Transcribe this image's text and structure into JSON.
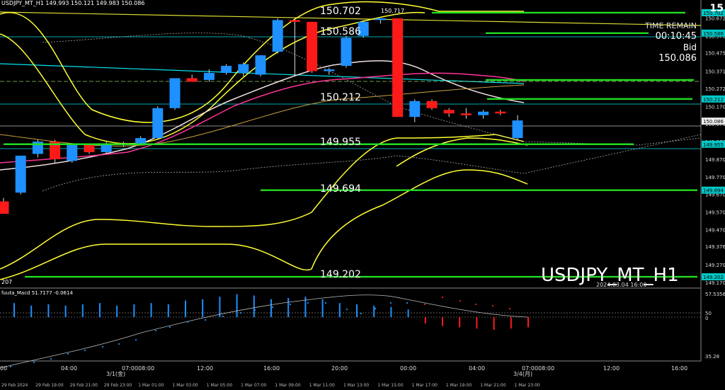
{
  "header": {
    "text": "USDJPY_MT_H1   149.993 150.121 149.983 150.086"
  },
  "corner_label": "15",
  "price_labels": {
    "high": "150.702",
    "high_small": "150.717",
    "l1": "150.586",
    "l2": "150.212",
    "l3": "149.955",
    "l4": "149.694",
    "l5": "149.202",
    "left_small": "207"
  },
  "info": {
    "time_remain_label": "TIME REMAIN",
    "time_remain": "00:10:45",
    "bid_label": "Bid",
    "bid": "150.086"
  },
  "symbol": "USDJPY_MT_H1",
  "timestamp": "2024.03.04 16:00",
  "indicator": {
    "label": "fuuta_Macd 51.7177   -0.0614",
    "axis": [
      "57.5356",
      "50",
      "0",
      "35.28"
    ]
  },
  "colors": {
    "bg": "#000000",
    "bull": "#1e90ff",
    "bear": "#ff1a1a",
    "support": "#22dd22",
    "band": "#ffff33",
    "ma_pink": "#ff3399",
    "ma_white": "#f0e0e0",
    "axis": "#00e5ee"
  },
  "chart_data": {
    "type": "candlestick",
    "price_range": [
      149.15,
      150.75
    ],
    "y_ticks": [
      "150.672",
      "150.570",
      "150.475",
      "150.371",
      "150.272",
      "150.170",
      "150.070",
      "149.970",
      "149.870",
      "149.770",
      "149.670",
      "149.570",
      "149.470",
      "149.376",
      "149.270",
      "149.170"
    ],
    "axis_marks": [
      {
        "label": "150.702",
        "price": 150.702
      },
      {
        "label": "150.586",
        "price": 150.586
      },
      {
        "label": "150.212",
        "price": 150.212
      },
      {
        "label": "150.086",
        "price": 150.086
      },
      {
        "label": "149.955",
        "price": 149.955
      },
      {
        "label": "149.694",
        "price": 149.694
      },
      {
        "label": "149.202",
        "price": 149.202
      }
    ],
    "x_top_ticks": [
      "00",
      "04:00",
      "3/1(金)",
      "07:0008:00",
      "12:00",
      "16:00",
      "20:00",
      "00:00",
      "04:00",
      "07:0008:00",
      "3/4(月)",
      "12:00",
      "16:00"
    ],
    "x_bottom_ticks": [
      "29 Feb 2024",
      "29 Feb 19:00",
      "29 Feb 21:00",
      "29 Feb 23:00",
      "1 Mar 01:00",
      "1 Mar 03:00",
      "1 Mar 05:00",
      "1 Mar 07:00",
      "1 Mar 09:00",
      "1 Mar 11:00",
      "1 Mar 13:00",
      "1 Mar 15:00",
      "1 Mar 17:00",
      "1 Mar 19:00",
      "1 Mar 21:00",
      "1 Mar 23:00"
    ],
    "candles": [
      {
        "o": 149.63,
        "h": 149.65,
        "l": 149.56,
        "c": 149.56
      },
      {
        "o": 149.68,
        "h": 149.89,
        "l": 149.67,
        "c": 149.89
      },
      {
        "o": 149.9,
        "h": 149.98,
        "l": 149.88,
        "c": 149.97
      },
      {
        "o": 149.97,
        "h": 149.98,
        "l": 149.85,
        "c": 149.87
      },
      {
        "o": 149.86,
        "h": 149.96,
        "l": 149.85,
        "c": 149.95
      },
      {
        "o": 149.95,
        "h": 149.96,
        "l": 149.9,
        "c": 149.91
      },
      {
        "o": 149.91,
        "h": 149.97,
        "l": 149.9,
        "c": 149.96
      },
      {
        "o": 149.96,
        "h": 149.97,
        "l": 149.94,
        "c": 149.95
      },
      {
        "o": 149.96,
        "h": 150.0,
        "l": 149.95,
        "c": 149.99
      },
      {
        "o": 149.99,
        "h": 150.17,
        "l": 149.98,
        "c": 150.16
      },
      {
        "o": 150.16,
        "h": 150.33,
        "l": 150.15,
        "c": 150.33
      },
      {
        "o": 150.33,
        "h": 150.35,
        "l": 150.31,
        "c": 150.31
      },
      {
        "o": 150.32,
        "h": 150.38,
        "l": 150.31,
        "c": 150.36
      },
      {
        "o": 150.36,
        "h": 150.41,
        "l": 150.35,
        "c": 150.4
      },
      {
        "o": 150.36,
        "h": 150.42,
        "l": 150.34,
        "c": 150.41
      },
      {
        "o": 150.35,
        "h": 150.46,
        "l": 150.34,
        "c": 150.46
      },
      {
        "o": 150.48,
        "h": 150.67,
        "l": 150.47,
        "c": 150.66
      },
      {
        "o": 150.66,
        "h": 150.67,
        "l": 150.34,
        "c": 150.65
      },
      {
        "o": 150.65,
        "h": 150.65,
        "l": 150.36,
        "c": 150.37
      },
      {
        "o": 150.37,
        "h": 150.39,
        "l": 150.35,
        "c": 150.38
      },
      {
        "o": 150.4,
        "h": 150.57,
        "l": 150.39,
        "c": 150.56
      },
      {
        "o": 150.57,
        "h": 150.66,
        "l": 150.56,
        "c": 150.65
      },
      {
        "o": 150.66,
        "h": 150.67,
        "l": 150.64,
        "c": 150.67
      },
      {
        "o": 150.67,
        "h": 150.67,
        "l": 150.11,
        "c": 150.11
      },
      {
        "o": 150.11,
        "h": 150.21,
        "l": 150.08,
        "c": 150.2
      },
      {
        "o": 150.2,
        "h": 150.21,
        "l": 150.15,
        "c": 150.16
      },
      {
        "o": 150.15,
        "h": 150.16,
        "l": 150.11,
        "c": 150.13
      },
      {
        "o": 150.13,
        "h": 150.16,
        "l": 150.1,
        "c": 150.12
      },
      {
        "o": 150.12,
        "h": 150.15,
        "l": 150.1,
        "c": 150.14
      },
      {
        "o": 150.14,
        "h": 150.15,
        "l": 150.12,
        "c": 150.13
      },
      {
        "o": 149.99,
        "h": 150.12,
        "l": 149.98,
        "c": 150.09
      }
    ],
    "horizontal_lines": [
      {
        "price": 150.702,
        "label": "150.702"
      },
      {
        "price": 150.586,
        "label": "150.586"
      },
      {
        "price": 150.212,
        "label": "150.212"
      },
      {
        "price": 149.955,
        "label": "149.955"
      },
      {
        "price": 149.694,
        "label": "149.694"
      },
      {
        "price": 149.202,
        "label": "149.202"
      }
    ],
    "macd_bars": [
      0.55,
      0.45,
      0.5,
      0.45,
      0.5,
      0.55,
      0.45,
      0.5,
      0.55,
      0.5,
      0.65,
      0.7,
      0.8,
      0.9,
      0.85,
      0.7,
      0.75,
      0.8,
      0.7,
      0.55,
      0.5,
      0.45,
      0.4,
      0.3,
      -0.25,
      -0.35,
      -0.4,
      -0.45,
      -0.5,
      -0.45,
      -0.4
    ]
  }
}
